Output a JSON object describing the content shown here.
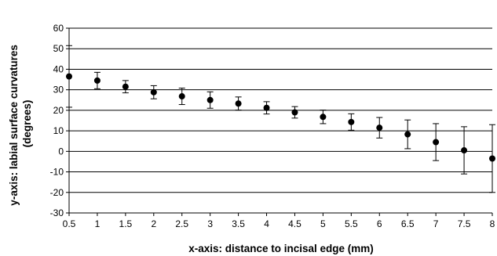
{
  "chart_data": {
    "type": "scatter",
    "xlabel": "x-axis: distance to incisal edge (mm)",
    "ylabel_lines": [
      "y-axis: labial surface curvatures",
      "(degrees)"
    ],
    "xlim": [
      0.5,
      8
    ],
    "ylim": [
      -30,
      60
    ],
    "x_ticks": [
      "0.5",
      "1",
      "1.5",
      "2",
      "2.5",
      "3",
      "3.5",
      "4",
      "4.5",
      "5",
      "5.5",
      "6",
      "6.5",
      "7",
      "7.5",
      "8"
    ],
    "y_ticks": [
      "-30",
      "-20",
      "-10",
      "0",
      "10",
      "20",
      "30",
      "40",
      "50",
      "60"
    ],
    "grid": "horizontal",
    "series": [
      {
        "x": [
          0.5,
          1,
          1.5,
          2,
          2.5,
          3,
          3.5,
          4,
          4.5,
          5,
          5.5,
          6,
          6.5,
          7,
          7.5,
          8
        ],
        "y": [
          36.5,
          34.5,
          31.5,
          28.8,
          26.8,
          25,
          23.3,
          21.2,
          19,
          16.8,
          14.3,
          11.5,
          8.3,
          4.5,
          0.5,
          -3.5
        ],
        "error": [
          15,
          4,
          3,
          3.2,
          4,
          4,
          3.2,
          3,
          2.8,
          3.3,
          4,
          5,
          7,
          9,
          11.5,
          16.5
        ]
      }
    ],
    "colors": {
      "marker": "#000000",
      "grid": "#000000",
      "plot_bg": "#ffffff"
    }
  }
}
